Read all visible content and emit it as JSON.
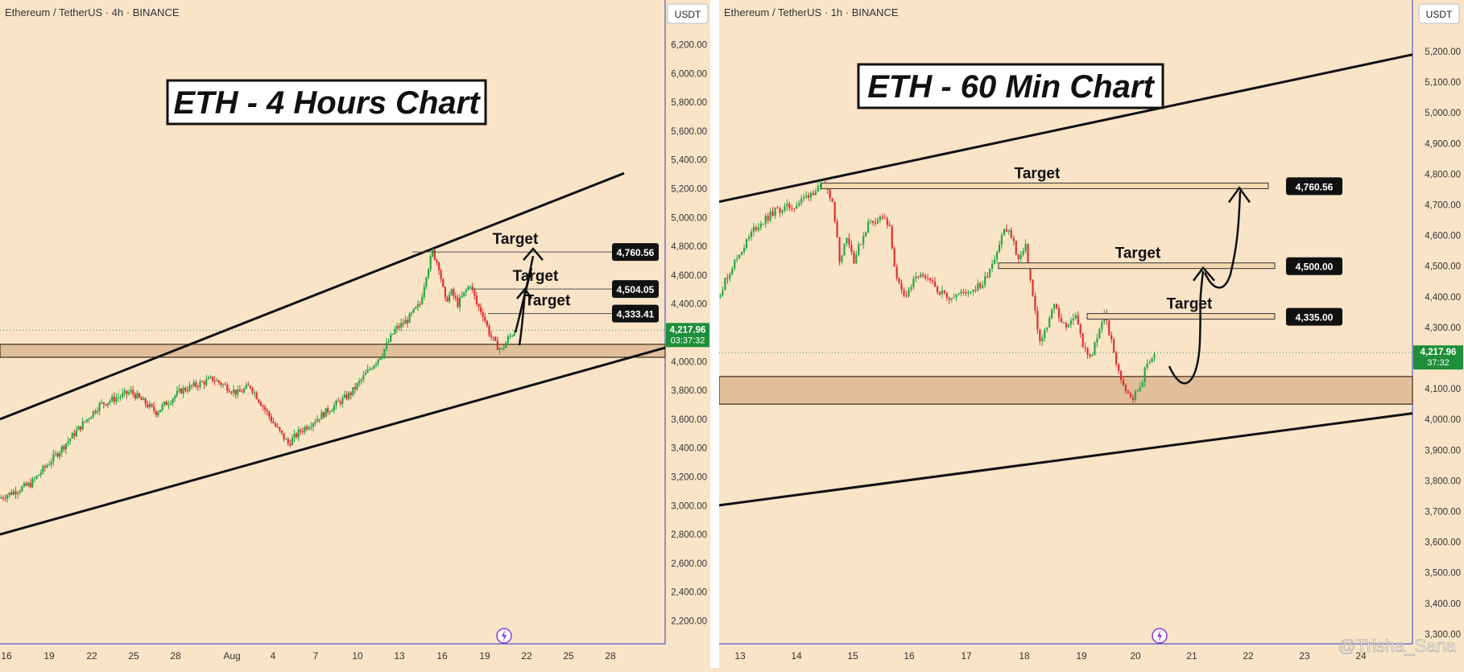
{
  "watermark": "@Trisha_Sana",
  "chart_data": [
    {
      "type": "candlestick",
      "symbol_header": "Ethereum / TetherUS · 4h · BINANCE",
      "currency": "USDT",
      "title": "ETH - 4 Hours Chart",
      "ylim": [
        2050,
        6350
      ],
      "y_ticks": [
        "6,200.00",
        "6,000.00",
        "5,800.00",
        "5,600.00",
        "5,400.00",
        "5,200.00",
        "5,000.00",
        "4,800.00",
        "4,600.00",
        "4,400.00",
        "4,200.00",
        "4,000.00",
        "3,800.00",
        "3,600.00",
        "3,400.00",
        "3,200.00",
        "3,000.00",
        "2,800.00",
        "2,600.00",
        "2,400.00",
        "2,200.00"
      ],
      "x_ticks": [
        "16",
        "19",
        "22",
        "25",
        "28",
        "Aug",
        "4",
        "7",
        "10",
        "13",
        "16",
        "19",
        "22",
        "25",
        "28"
      ],
      "last_price": "4,217.96",
      "last_price_value": 4217.96,
      "countdown": "03:37:32",
      "price_path": [
        [
          0,
          3050
        ],
        [
          5,
          3150
        ],
        [
          11,
          3450
        ],
        [
          16,
          3700
        ],
        [
          21,
          3790
        ],
        [
          25,
          3650
        ],
        [
          29,
          3800
        ],
        [
          34,
          3880
        ],
        [
          38,
          3780
        ],
        [
          40,
          3830
        ],
        [
          44,
          3550
        ],
        [
          46,
          3430
        ],
        [
          48,
          3520
        ],
        [
          52,
          3650
        ],
        [
          56,
          3780
        ],
        [
          59,
          3950
        ],
        [
          61,
          4060
        ],
        [
          63,
          4220
        ],
        [
          65,
          4290
        ],
        [
          67,
          4400
        ],
        [
          68,
          4610
        ],
        [
          69,
          4760
        ],
        [
          70,
          4660
        ],
        [
          71,
          4420
        ],
        [
          72,
          4480
        ],
        [
          73,
          4400
        ],
        [
          74,
          4470
        ],
        [
          75,
          4540
        ],
        [
          76,
          4400
        ],
        [
          77,
          4330
        ],
        [
          78,
          4200
        ],
        [
          79,
          4120
        ],
        [
          80,
          4080
        ],
        [
          81,
          4160
        ],
        [
          82,
          4210
        ]
      ],
      "targets": [
        {
          "label": "Target",
          "value": 4760.56,
          "price": "4,760.56"
        },
        {
          "label": "Target",
          "value": 4504.05,
          "price": "4,504.05"
        },
        {
          "label": "Target",
          "value": 4333.41,
          "price": "4,333.41"
        }
      ],
      "support_zone": [
        4030,
        4120
      ],
      "channel_upper": [
        [
          0,
          3600
        ],
        [
          100,
          5420
        ]
      ],
      "channel_lower": [
        [
          0,
          2800
        ],
        [
          108,
          4200
        ]
      ]
    },
    {
      "type": "candlestick",
      "symbol_header": "Ethereum / TetherUS · 1h · BINANCE",
      "currency": "USDT",
      "title": "ETH - 60 Min Chart",
      "ylim": [
        3280,
        5270
      ],
      "y_ticks": [
        "5,200.00",
        "5,100.00",
        "5,000.00",
        "4,900.00",
        "4,800.00",
        "4,700.00",
        "4,600.00",
        "4,500.00",
        "4,400.00",
        "4,300.00",
        "4,200.00",
        "4,100.00",
        "4,000.00",
        "3,900.00",
        "3,800.00",
        "3,700.00",
        "3,600.00",
        "3,500.00",
        "3,400.00",
        "3,300.00"
      ],
      "x_ticks": [
        "13",
        "14",
        "15",
        "16",
        "17",
        "18",
        "19",
        "20",
        "21",
        "22",
        "23",
        "24"
      ],
      "last_price": "4,217.96",
      "last_price_value": 4217.96,
      "countdown": "37:32",
      "price_path": [
        [
          0,
          4400
        ],
        [
          2,
          4500
        ],
        [
          5,
          4620
        ],
        [
          8,
          4680
        ],
        [
          11,
          4700
        ],
        [
          13,
          4740
        ],
        [
          15,
          4760
        ],
        [
          16,
          4720
        ],
        [
          17,
          4520
        ],
        [
          18,
          4600
        ],
        [
          19,
          4520
        ],
        [
          21,
          4640
        ],
        [
          23,
          4660
        ],
        [
          24,
          4620
        ],
        [
          25,
          4450
        ],
        [
          26,
          4400
        ],
        [
          28,
          4470
        ],
        [
          30,
          4440
        ],
        [
          32,
          4400
        ],
        [
          34,
          4410
        ],
        [
          36,
          4430
        ],
        [
          37,
          4440
        ],
        [
          39,
          4550
        ],
        [
          40,
          4620
        ],
        [
          41,
          4600
        ],
        [
          42,
          4520
        ],
        [
          43,
          4560
        ],
        [
          44,
          4400
        ],
        [
          45,
          4250
        ],
        [
          46,
          4300
        ],
        [
          47,
          4380
        ],
        [
          48,
          4320
        ],
        [
          49,
          4300
        ],
        [
          50,
          4350
        ],
        [
          51,
          4240
        ],
        [
          52,
          4200
        ],
        [
          53,
          4260
        ],
        [
          54,
          4350
        ],
        [
          55,
          4250
        ],
        [
          56,
          4150
        ],
        [
          57,
          4100
        ],
        [
          58,
          4070
        ],
        [
          59,
          4110
        ],
        [
          60,
          4180
        ],
        [
          61,
          4217.96
        ]
      ],
      "targets": [
        {
          "label": "Target",
          "value": 4760.56,
          "price": "4,760.56"
        },
        {
          "label": "Target",
          "value": 4500.0,
          "price": "4,500.00"
        },
        {
          "label": "Target",
          "value": 4335.0,
          "price": "4,335.00"
        }
      ],
      "support_zone": [
        4050,
        4140
      ],
      "channel_upper": [
        [
          0,
          4710
        ],
        [
          100,
          5190
        ]
      ],
      "channel_lower": [
        [
          0,
          3720
        ],
        [
          100,
          4020
        ]
      ]
    }
  ]
}
